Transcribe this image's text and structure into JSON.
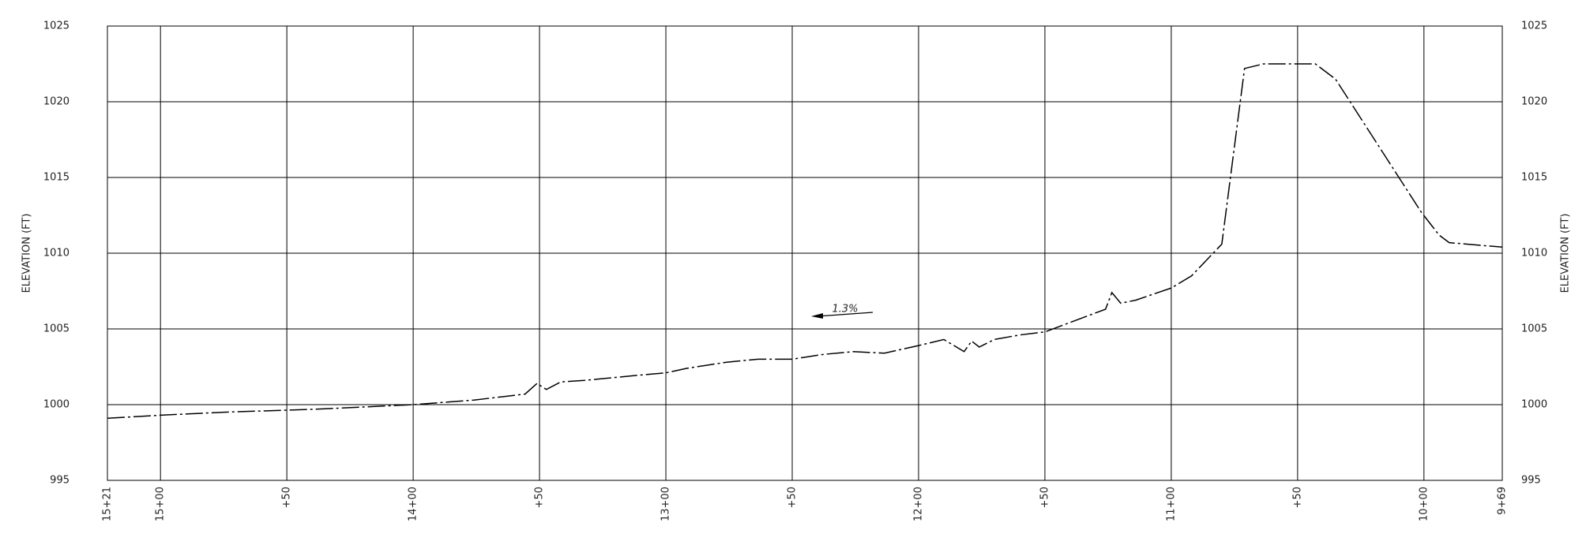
{
  "chart_data": {
    "type": "line",
    "y_label": "ELEVATION (FT)",
    "annotation": "1.3%",
    "x": [
      1521,
      1500,
      1475,
      1438.5,
      1400,
      1376,
      1355.7,
      1351,
      1347.3,
      1341.6,
      1332.3,
      1313.5,
      1300,
      1291.6,
      1276,
      1263.5,
      1250,
      1238.5,
      1226,
      1213.5,
      1200,
      1190,
      1182,
      1179,
      1176,
      1170,
      1160,
      1150,
      1126,
      1123.5,
      1120,
      1114,
      1107,
      1100,
      1092,
      1080,
      1071,
      1063.5,
      1043,
      1035,
      1001,
      994,
      990,
      969
    ],
    "values": [
      999.1,
      999.3,
      999.5,
      999.7,
      1000.0,
      1000.3,
      1000.7,
      1001.4,
      1001.0,
      1001.5,
      1001.6,
      1001.9,
      1002.1,
      1002.4,
      1002.8,
      1003.0,
      1003.0,
      1003.3,
      1003.5,
      1003.4,
      1003.9,
      1004.3,
      1003.5,
      1004.2,
      1003.8,
      1004.3,
      1004.6,
      1004.8,
      1006.3,
      1007.4,
      1006.7,
      1006.9,
      1007.3,
      1007.7,
      1008.5,
      1010.6,
      1022.2,
      1022.5,
      1022.5,
      1021.5,
      1012.7,
      1011.2,
      1010.7,
      1010.4
    ],
    "color": "#000000",
    "xlim": [
      1521,
      969
    ],
    "ylim": [
      995,
      1025
    ],
    "xticks": [
      {
        "value": 1521,
        "label": "15+21"
      },
      {
        "value": 1500,
        "label": "15+00"
      },
      {
        "value": 1450,
        "label": "+50"
      },
      {
        "value": 1400,
        "label": "14+00"
      },
      {
        "value": 1350,
        "label": "+50"
      },
      {
        "value": 1300,
        "label": "13+00"
      },
      {
        "value": 1250,
        "label": "+50"
      },
      {
        "value": 1200,
        "label": "12+00"
      },
      {
        "value": 1150,
        "label": "+50"
      },
      {
        "value": 1100,
        "label": "11+00"
      },
      {
        "value": 1050,
        "label": "+50"
      },
      {
        "value": 1000,
        "label": "10+00"
      },
      {
        "value": 969,
        "label": "9+69"
      }
    ],
    "yticks": [
      995,
      1000,
      1005,
      1010,
      1015,
      1020,
      1025
    ],
    "grid": true
  }
}
